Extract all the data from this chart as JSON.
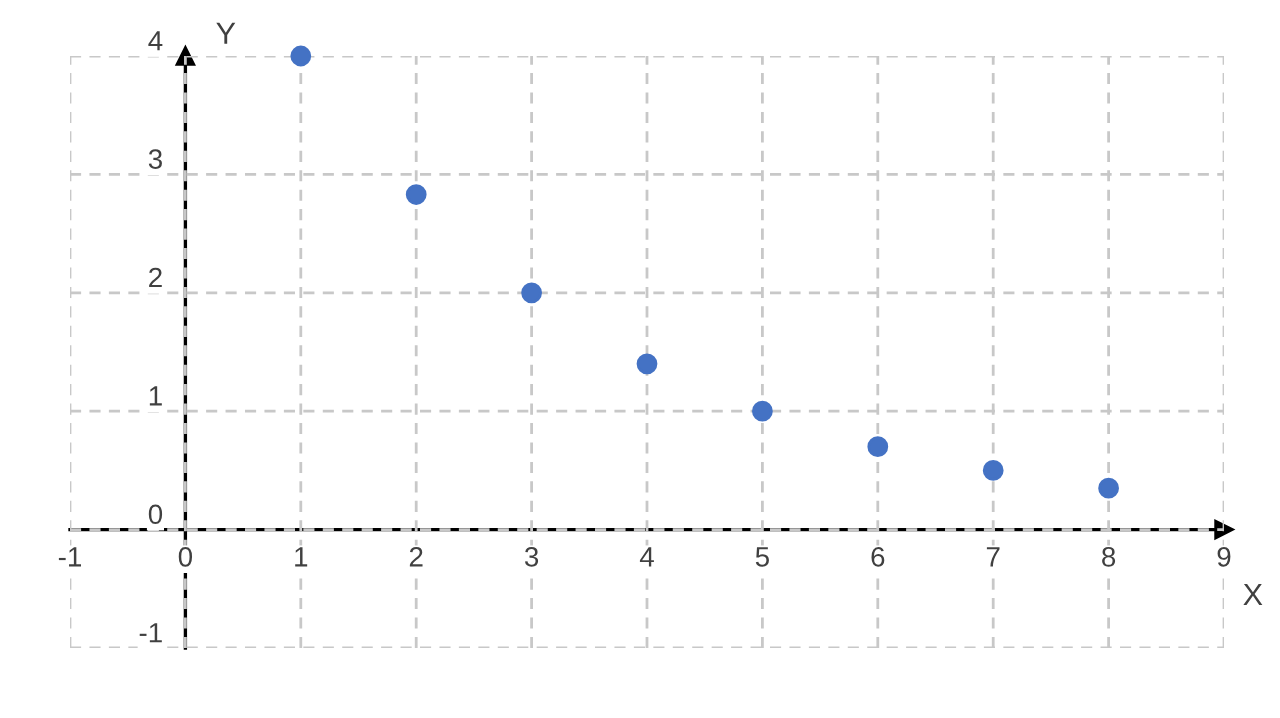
{
  "chart_data": {
    "type": "scatter",
    "xlabel": "X",
    "ylabel": "Y",
    "x": [
      1,
      2,
      3,
      4,
      5,
      6,
      7,
      8
    ],
    "values": [
      4,
      2.83,
      2,
      1.4,
      1,
      0.7,
      0.5,
      0.35
    ],
    "color": "#4472c4",
    "marker": "circle",
    "xlim": [
      -1,
      9
    ],
    "ylim": [
      -1,
      4
    ],
    "xticks": [
      -1,
      0,
      1,
      2,
      3,
      4,
      5,
      6,
      7,
      8,
      9
    ],
    "yticks": [
      -1,
      0,
      1,
      2,
      3,
      4
    ],
    "grid": true
  }
}
